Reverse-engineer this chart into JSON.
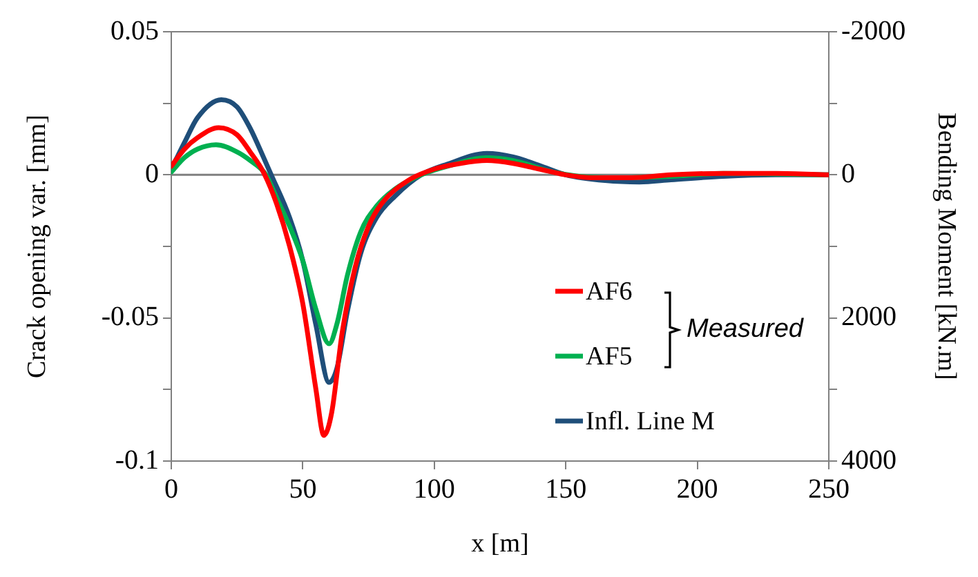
{
  "chart_data": {
    "type": "line",
    "xlabel": "x [m]",
    "ylabel": "Crack opening var. [mm]",
    "y2label": "Bending Moment [kN.m]",
    "xlim": [
      0,
      250
    ],
    "xticks": [
      0,
      50,
      100,
      150,
      200,
      250
    ],
    "ylim": [
      -0.1,
      0.05
    ],
    "yticks": [
      -0.1,
      {
        "value": -0.075,
        "label": null
      },
      -0.05,
      {
        "value": -0.025,
        "label": null
      },
      0,
      {
        "value": 0.025,
        "label": null
      },
      0.05
    ],
    "y2lim": [
      4000,
      -2000
    ],
    "y2ticks": [
      4000,
      {
        "value": 3000,
        "label": null
      },
      2000,
      {
        "value": 1000,
        "label": null
      },
      0,
      {
        "value": -1000,
        "label": null
      },
      -2000
    ],
    "grid": false,
    "legend": "bottom right",
    "marker": "none",
    "line_style": "solid",
    "ref_lines": [
      {
        "axis": "y",
        "value": 0,
        "color": "#808080"
      }
    ],
    "annotations": [
      "Measured"
    ],
    "series": [
      {
        "name": "AF6",
        "color": "#ff0000",
        "x": [
          0,
          5,
          10,
          18,
          25,
          30,
          35,
          40,
          45,
          50,
          55,
          58,
          61,
          65,
          70,
          75,
          80,
          90,
          100,
          110,
          120,
          130,
          140,
          150,
          160,
          175,
          190,
          210,
          230,
          250
        ],
        "values": [
          0.003,
          0.009,
          0.013,
          0.0165,
          0.014,
          0.008,
          0.001,
          -0.01,
          -0.025,
          -0.045,
          -0.075,
          -0.091,
          -0.083,
          -0.055,
          -0.032,
          -0.018,
          -0.01,
          -0.002,
          0.002,
          0.004,
          0.005,
          0.004,
          0.002,
          0,
          -0.001,
          -0.001,
          0,
          0.0005,
          0.0005,
          0
        ]
      },
      {
        "name": "AF5",
        "color": "#00b050",
        "x": [
          0,
          5,
          10,
          17,
          25,
          30,
          36,
          40,
          45,
          50,
          55,
          60,
          63,
          67,
          72,
          78,
          85,
          95,
          105,
          120,
          130,
          145,
          155,
          170,
          190,
          210,
          250
        ],
        "values": [
          0.001,
          0.006,
          0.009,
          0.0105,
          0.008,
          0.005,
          0,
          -0.008,
          -0.018,
          -0.03,
          -0.047,
          -0.059,
          -0.052,
          -0.035,
          -0.02,
          -0.011,
          -0.005,
          0,
          0.003,
          0.006,
          0.005,
          0.001,
          -0.0005,
          -0.001,
          -0.0005,
          0.0005,
          0
        ]
      },
      {
        "name": "Infl. Line M",
        "color": "#1f4e79",
        "axis": "y2",
        "x": [
          0,
          5,
          10,
          19,
          25,
          30,
          35,
          38,
          45,
          50,
          55,
          60,
          63,
          67,
          72,
          78,
          85,
          95,
          105,
          120,
          130,
          140,
          150,
          165,
          178,
          190,
          210,
          230,
          250
        ],
        "values": [
          -80,
          -450,
          -800,
          -1050,
          -950,
          -650,
          -250,
          0,
          600,
          1200,
          2100,
          2900,
          2700,
          1900,
          1100,
          600,
          300,
          0,
          -150,
          -300,
          -250,
          -130,
          0,
          80,
          100,
          70,
          20,
          0,
          0
        ]
      }
    ]
  }
}
